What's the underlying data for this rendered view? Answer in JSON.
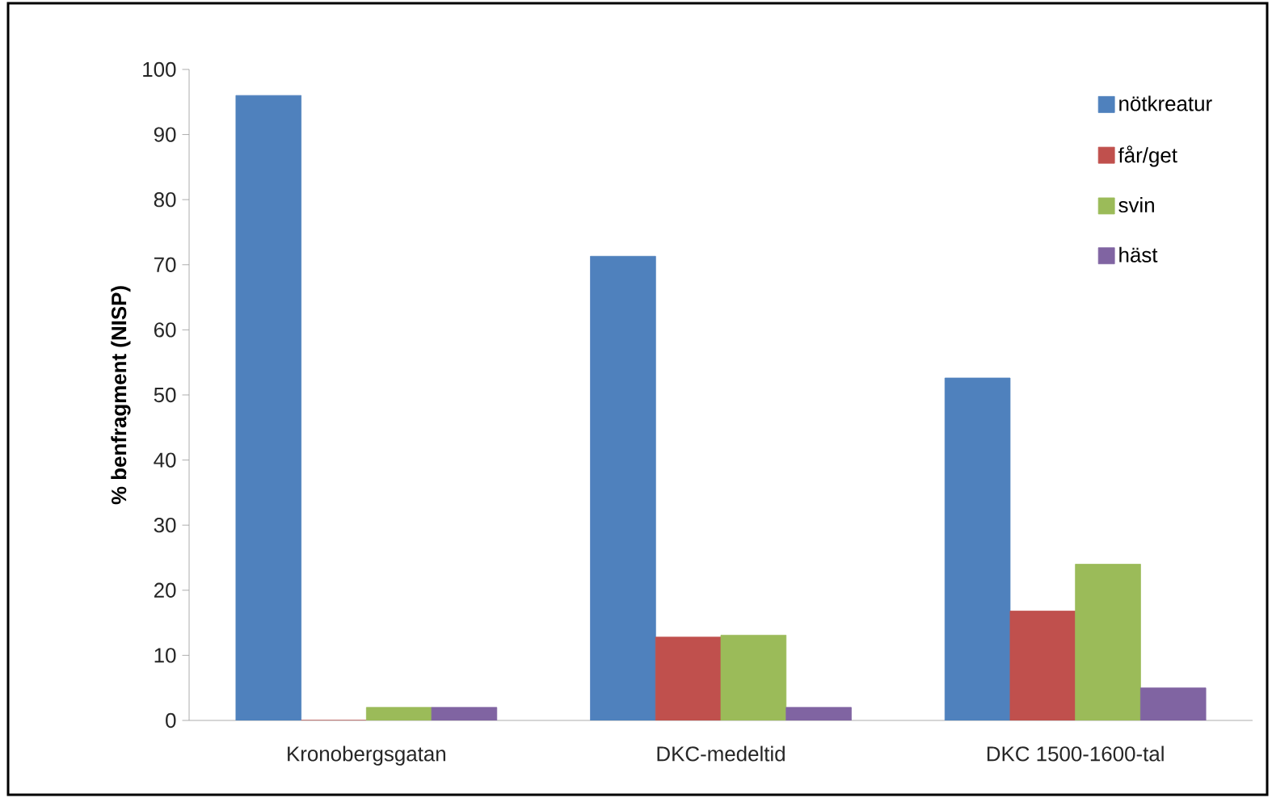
{
  "chart_data": {
    "type": "bar",
    "ylabel": "% benfragment (NISP)",
    "categories": [
      "Kronobergsgatan",
      "DKC-medeltid",
      "DKC 1500-1600-tal"
    ],
    "series": [
      {
        "name": "nötkreatur",
        "color": "#4f81bd",
        "values": [
          96,
          71.3,
          52.6
        ]
      },
      {
        "name": "får/get",
        "color": "#c0504d",
        "values": [
          0,
          12.8,
          16.8
        ]
      },
      {
        "name": "svin",
        "color": "#9bbb59",
        "values": [
          2,
          13.1,
          24
        ]
      },
      {
        "name": "häst",
        "color": "#8064a2",
        "values": [
          2,
          2,
          5
        ]
      }
    ],
    "ylim": [
      0,
      100
    ],
    "yticks": [
      0,
      10,
      20,
      30,
      40,
      50,
      60,
      70,
      80,
      90,
      100
    ],
    "grid": false,
    "legend": "top right"
  }
}
